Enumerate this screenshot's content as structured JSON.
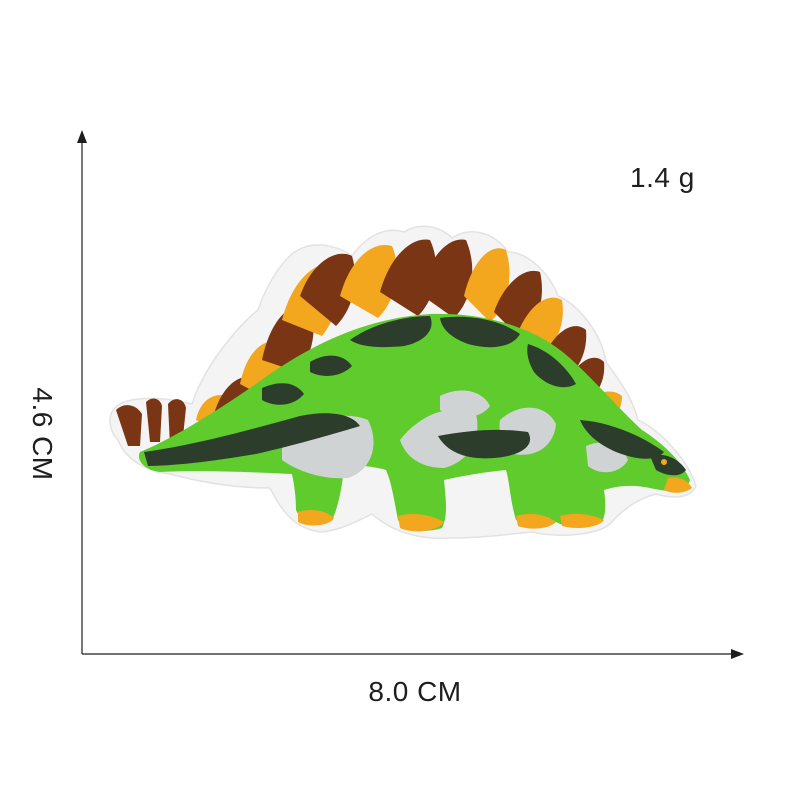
{
  "labels": {
    "weight": "1.4 g",
    "height": "4.6 CM",
    "width": "8.0 CM"
  },
  "colors": {
    "axis": "#1e1e1e",
    "patch_border": "#f4f4f4",
    "green": "#5fcb2c",
    "dark_green": "#2c3d2c",
    "brown": "#7a3614",
    "orange": "#f2a71e",
    "grey": "#cfd3d3"
  },
  "icons": {
    "subject": "stegosaurus-patch-image",
    "vertical_axis": "arrow-up-icon",
    "horizontal_axis": "arrow-right-icon"
  }
}
